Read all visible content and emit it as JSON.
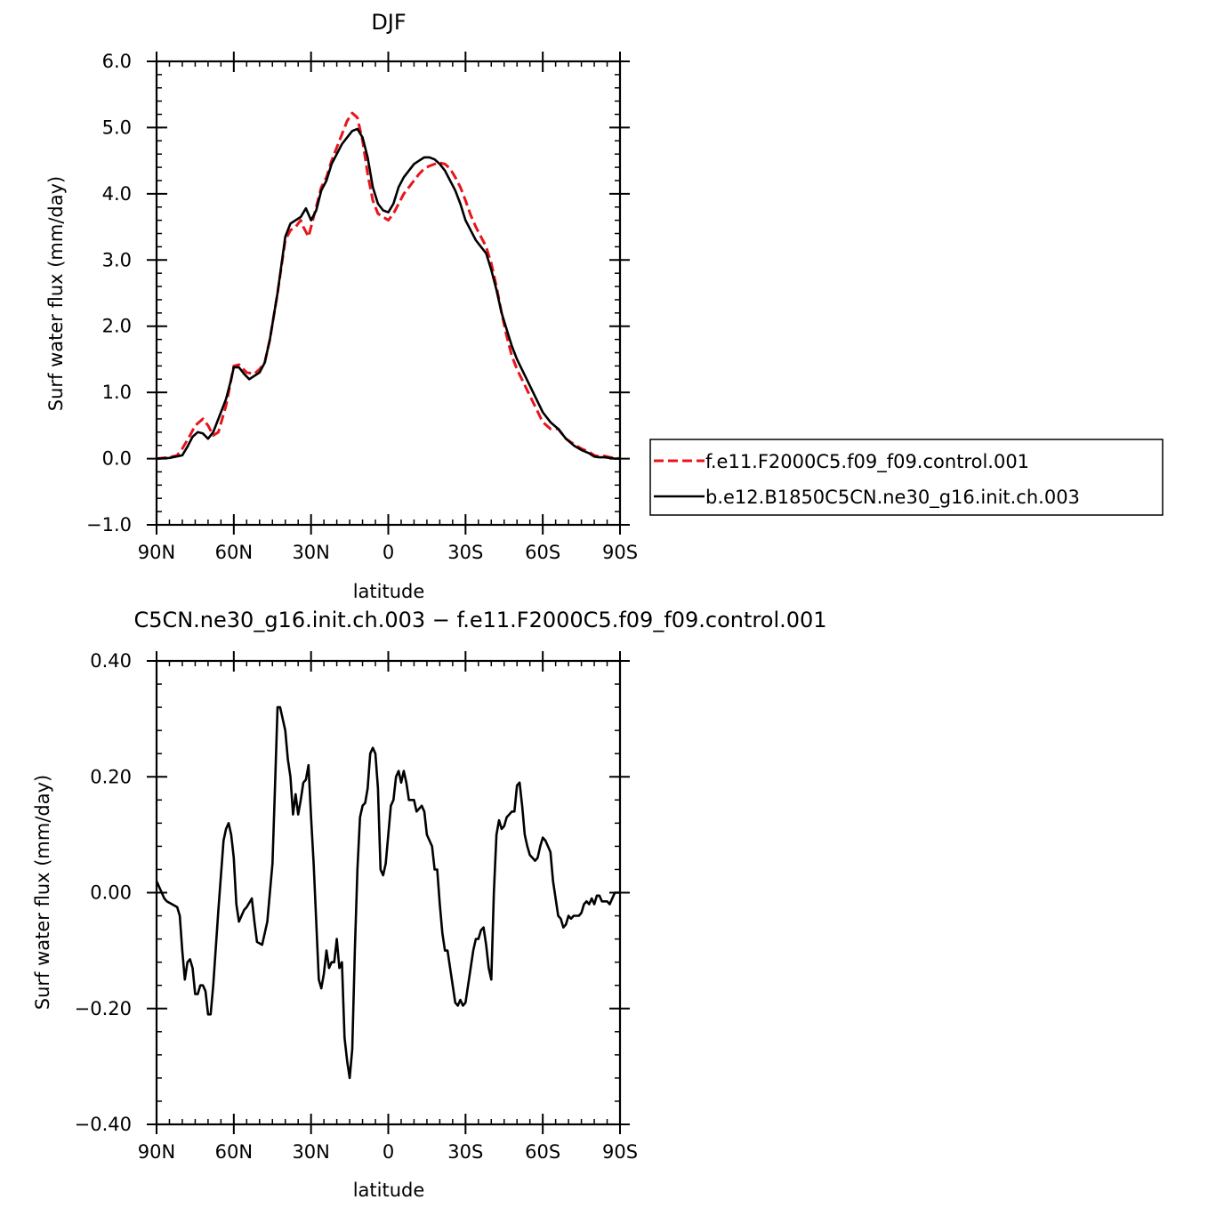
{
  "figure": {
    "top_title": "DJF",
    "bottom_title": "C5CN.ne30_g16.init.ch.003 − f.e11.F2000C5.f09_f09.control.001"
  },
  "legend": [
    {
      "label": "f.e11.F2000C5.f09_f09.control.001",
      "color": "#e8141c",
      "dash": "dashed"
    },
    {
      "label": "b.e12.B1850C5CN.ne30_g16.init.ch.003",
      "color": "#000000",
      "dash": "solid"
    }
  ],
  "chart_data": [
    {
      "type": "line",
      "title": "DJF",
      "xlabel": "latitude",
      "ylabel": "Surf water flux (mm/day)",
      "xlim": [
        90,
        -90
      ],
      "ylim": [
        -1.0,
        6.0
      ],
      "x_ticks": [
        90,
        60,
        30,
        0,
        -30,
        -60,
        -90
      ],
      "x_tick_labels": [
        "90N",
        "60N",
        "30N",
        "0",
        "30S",
        "60S",
        "90S"
      ],
      "y_ticks": [
        -1.0,
        0.0,
        1.0,
        2.0,
        3.0,
        4.0,
        5.0,
        6.0
      ],
      "y_tick_labels": [
        "−1.0",
        "0.0",
        "1.0",
        "2.0",
        "3.0",
        "4.0",
        "5.0",
        "6.0"
      ],
      "legend_position": "right",
      "series": [
        {
          "name": "f.e11.F2000C5.f09_f09.control.001",
          "color": "#e8141c",
          "dash": "dashed",
          "x": [
            90,
            85,
            82,
            80,
            77,
            75,
            72,
            70,
            68,
            66,
            63,
            61,
            60,
            58,
            55,
            52,
            50,
            48,
            46,
            43,
            40,
            38,
            36,
            34,
            33,
            31,
            30,
            28,
            26,
            24,
            22,
            20,
            18,
            16,
            14,
            12,
            10,
            8,
            6,
            4,
            2,
            0,
            -2,
            -4,
            -6,
            -8,
            -10,
            -12,
            -14,
            -16,
            -18,
            -20,
            -22,
            -24,
            -26,
            -28,
            -30,
            -32,
            -34,
            -36,
            -38,
            -40,
            -42,
            -44,
            -46,
            -48,
            -50,
            -55,
            -60,
            -63,
            -66,
            -69,
            -72,
            -75,
            -78,
            -80,
            -82,
            -84,
            -86,
            -88,
            -90
          ],
          "values": [
            0.0,
            0.02,
            0.05,
            0.15,
            0.35,
            0.5,
            0.6,
            0.5,
            0.35,
            0.4,
            0.8,
            1.2,
            1.4,
            1.42,
            1.3,
            1.28,
            1.35,
            1.45,
            1.8,
            2.5,
            3.3,
            3.45,
            3.5,
            3.6,
            3.5,
            3.35,
            3.5,
            3.8,
            4.1,
            4.25,
            4.5,
            4.7,
            4.9,
            5.1,
            5.22,
            5.15,
            4.8,
            4.3,
            3.9,
            3.7,
            3.65,
            3.6,
            3.7,
            3.85,
            4.0,
            4.1,
            4.2,
            4.3,
            4.38,
            4.42,
            4.45,
            4.47,
            4.45,
            4.38,
            4.25,
            4.1,
            3.9,
            3.68,
            3.5,
            3.35,
            3.2,
            2.95,
            2.6,
            2.2,
            1.85,
            1.55,
            1.35,
            0.95,
            0.55,
            0.45,
            0.45,
            0.3,
            0.22,
            0.15,
            0.1,
            0.05,
            0.03,
            0.04,
            0.02,
            0.01,
            0.0
          ]
        },
        {
          "name": "b.e12.B1850C5CN.ne30_g16.init.ch.003",
          "color": "#000000",
          "dash": "solid",
          "x": [
            90,
            85,
            80,
            78,
            76,
            74,
            72,
            70,
            68,
            66,
            63,
            61,
            60,
            58,
            56,
            54,
            52,
            50,
            48,
            46,
            43,
            40,
            38,
            36,
            34,
            32,
            30,
            28,
            26,
            24,
            22,
            20,
            18,
            16,
            14,
            12,
            10,
            8,
            6,
            4,
            2,
            0,
            -2,
            -4,
            -6,
            -8,
            -10,
            -12,
            -14,
            -16,
            -18,
            -20,
            -22,
            -24,
            -26,
            -28,
            -30,
            -32,
            -34,
            -36,
            -38,
            -40,
            -42,
            -44,
            -46,
            -48,
            -50,
            -55,
            -60,
            -63,
            -66,
            -69,
            -72,
            -75,
            -78,
            -80,
            -82,
            -84,
            -86,
            -88,
            -90
          ],
          "values": [
            0.0,
            0.01,
            0.05,
            0.18,
            0.33,
            0.4,
            0.38,
            0.3,
            0.4,
            0.6,
            0.9,
            1.2,
            1.38,
            1.38,
            1.28,
            1.2,
            1.25,
            1.3,
            1.45,
            1.8,
            2.5,
            3.35,
            3.55,
            3.6,
            3.65,
            3.78,
            3.6,
            3.75,
            4.05,
            4.2,
            4.45,
            4.6,
            4.75,
            4.85,
            4.95,
            4.98,
            4.85,
            4.55,
            4.1,
            3.85,
            3.75,
            3.72,
            3.85,
            4.1,
            4.25,
            4.35,
            4.45,
            4.5,
            4.55,
            4.55,
            4.52,
            4.45,
            4.35,
            4.2,
            4.05,
            3.85,
            3.6,
            3.45,
            3.3,
            3.2,
            3.1,
            2.85,
            2.55,
            2.2,
            1.95,
            1.7,
            1.5,
            1.1,
            0.7,
            0.55,
            0.45,
            0.3,
            0.2,
            0.13,
            0.08,
            0.03,
            0.02,
            0.02,
            0.01,
            0.0,
            0.0
          ]
        }
      ]
    },
    {
      "type": "line",
      "title": "C5CN.ne30_g16.init.ch.003 − f.e11.F2000C5.f09_f09.control.001",
      "xlabel": "latitude",
      "ylabel": "Surf water flux (mm/day)",
      "xlim": [
        90,
        -90
      ],
      "ylim": [
        -0.4,
        0.4
      ],
      "x_ticks": [
        90,
        60,
        30,
        0,
        -30,
        -60,
        -90
      ],
      "x_tick_labels": [
        "90N",
        "60N",
        "30N",
        "0",
        "30S",
        "60S",
        "90S"
      ],
      "y_ticks": [
        -0.4,
        -0.2,
        0.0,
        0.2,
        0.4
      ],
      "y_tick_labels": [
        "−0.40",
        "−0.20",
        "0.00",
        "0.20",
        "0.40"
      ],
      "series": [
        {
          "color": "#000000",
          "dash": "solid",
          "x": [
            90,
            89,
            87,
            86,
            84,
            82,
            81,
            80,
            79,
            78,
            77,
            76,
            75,
            74,
            73,
            72,
            71,
            70,
            69,
            68,
            66,
            64,
            63,
            62,
            61,
            60,
            59,
            58,
            57,
            56,
            55,
            53,
            52,
            51,
            49,
            47,
            45,
            44,
            43,
            42,
            41,
            40,
            39,
            38,
            37,
            36,
            35,
            34,
            33,
            32,
            31,
            30,
            29,
            28,
            27,
            26,
            25,
            24,
            23,
            22,
            21,
            20,
            19,
            18,
            17,
            16,
            15,
            14,
            13,
            12,
            11,
            10,
            9,
            8,
            7,
            6,
            5,
            4,
            3,
            2,
            1,
            0,
            -1,
            -2,
            -3,
            -4,
            -5,
            -6,
            -7,
            -8,
            -9,
            -10,
            -11,
            -12,
            -13,
            -14,
            -15,
            -16,
            -17,
            -18,
            -19,
            -20,
            -21,
            -22,
            -23,
            -24,
            -25,
            -26,
            -27,
            -28,
            -29,
            -30,
            -31,
            -32,
            -33,
            -34,
            -35,
            -36,
            -37,
            -38,
            -39,
            -40,
            -41,
            -42,
            -43,
            -44,
            -45,
            -46,
            -47,
            -48,
            -49,
            -50,
            -51,
            -52,
            -53,
            -54,
            -55,
            -56,
            -57,
            -58,
            -59,
            -60,
            -61,
            -62,
            -63,
            -64,
            -65,
            -66,
            -67,
            -68,
            -69,
            -70,
            -71,
            -72,
            -73,
            -74,
            -75,
            -76,
            -77,
            -78,
            -79,
            -80,
            -81,
            -82,
            -83,
            -84,
            -85,
            -86,
            -87,
            -88,
            -89,
            -90
          ],
          "values": [
            0.02,
            0.01,
            -0.01,
            -0.015,
            -0.02,
            -0.025,
            -0.04,
            -0.1,
            -0.15,
            -0.12,
            -0.115,
            -0.13,
            -0.175,
            -0.175,
            -0.16,
            -0.16,
            -0.17,
            -0.21,
            -0.21,
            -0.16,
            -0.03,
            0.09,
            0.11,
            0.12,
            0.1,
            0.06,
            -0.02,
            -0.05,
            -0.04,
            -0.03,
            -0.025,
            -0.01,
            -0.05,
            -0.085,
            -0.09,
            -0.05,
            0.05,
            0.18,
            0.32,
            0.32,
            0.3,
            0.28,
            0.23,
            0.2,
            0.135,
            0.17,
            0.135,
            0.16,
            0.19,
            0.195,
            0.22,
            0.13,
            0.05,
            -0.05,
            -0.15,
            -0.165,
            -0.14,
            -0.1,
            -0.13,
            -0.12,
            -0.12,
            -0.08,
            -0.13,
            -0.12,
            -0.25,
            -0.29,
            -0.32,
            -0.27,
            -0.1,
            0.04,
            0.13,
            0.15,
            0.155,
            0.18,
            0.24,
            0.25,
            0.24,
            0.18,
            0.04,
            0.03,
            0.05,
            0.1,
            0.15,
            0.16,
            0.2,
            0.21,
            0.19,
            0.21,
            0.19,
            0.16,
            0.16,
            0.16,
            0.14,
            0.145,
            0.15,
            0.14,
            0.1,
            0.09,
            0.08,
            0.04,
            0.04,
            -0.02,
            -0.07,
            -0.1,
            -0.1,
            -0.13,
            -0.16,
            -0.19,
            -0.195,
            -0.185,
            -0.195,
            -0.19,
            -0.16,
            -0.13,
            -0.1,
            -0.08,
            -0.08,
            -0.065,
            -0.06,
            -0.09,
            -0.13,
            -0.15,
            0.0,
            0.1,
            0.125,
            0.11,
            0.115,
            0.13,
            0.135,
            0.14,
            0.14,
            0.185,
            0.19,
            0.15,
            0.1,
            0.08,
            0.065,
            0.06,
            0.055,
            0.06,
            0.08,
            0.095,
            0.09,
            0.08,
            0.07,
            0.02,
            -0.01,
            -0.04,
            -0.045,
            -0.06,
            -0.055,
            -0.04,
            -0.045,
            -0.04,
            -0.04,
            -0.04,
            -0.035,
            -0.02,
            -0.015,
            -0.02,
            -0.01,
            -0.02,
            -0.005,
            -0.005,
            -0.015,
            -0.015,
            -0.015,
            -0.02,
            -0.01,
            0.0,
            0.0,
            0.0
          ]
        }
      ]
    }
  ]
}
